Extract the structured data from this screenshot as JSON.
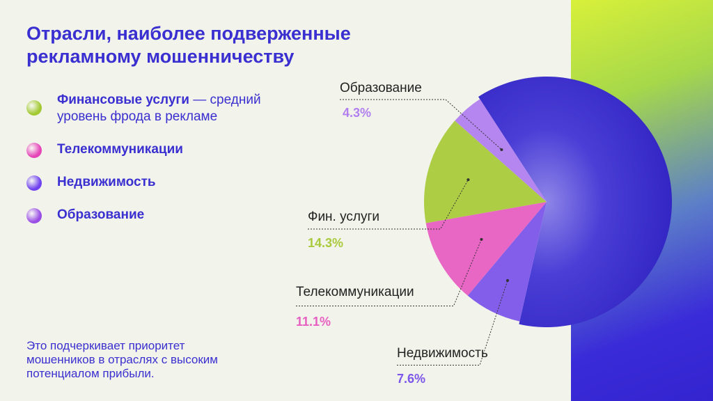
{
  "chart_data": {
    "type": "pie",
    "title": "Отрасли, наиболее подверженные рекламному мошенничеству",
    "categories": [
      "Образование",
      "Фин. услуги",
      "Телекоммуникации",
      "Недвижимость",
      null
    ],
    "values": [
      4.3,
      14.3,
      11.1,
      7.6,
      62.7
    ],
    "value_labels": [
      "4.3%",
      "14.3%",
      "11.1%",
      "7.6%",
      null
    ],
    "colors": [
      "#b27ff0",
      "#a9ca3c",
      "#e85fc2",
      "#7c55ea",
      "#4437d2"
    ],
    "legend": [
      {
        "label": "Финансовые услуги",
        "color": "#a3c933"
      },
      {
        "label": "Телекоммуникации",
        "color": "#e545b8"
      },
      {
        "label": "Недвижимость",
        "color": "#7043ef"
      },
      {
        "label": "Образование",
        "color": "#9a4ee6"
      }
    ],
    "legend_note": "— средний уровень фрода в рекламе",
    "footnote": "Это подчеркивает приоритет мошенников в отраслях с высоким потенциалом прибыли."
  }
}
